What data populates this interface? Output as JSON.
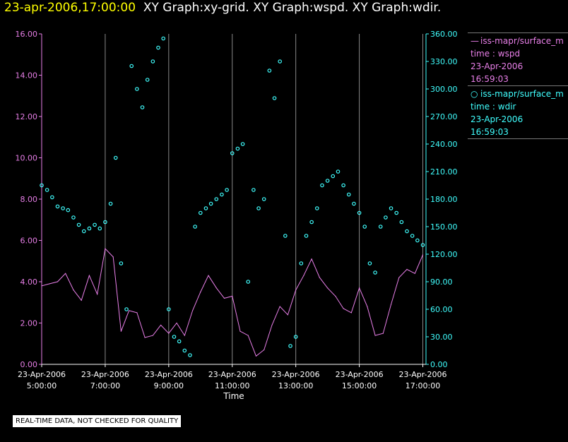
{
  "header": {
    "datetime": "23-apr-2006,17:00:00",
    "title": "XY Graph:xy-grid.  XY Graph:wspd.  XY Graph:wdir."
  },
  "legend": [
    {
      "name": "iss-mapr/surface_m",
      "symbol": "line",
      "label": "time : wspd",
      "date": "23-Apr-2006",
      "time": "16:59:03"
    },
    {
      "name": "iss-mapr/surface_m",
      "symbol": "circle",
      "label": "time : wdir",
      "date": "23-Apr-2006",
      "time": "16:59:03"
    }
  ],
  "quality_note": "REAL-TIME DATA, NOT CHECKED FOR QUALITY",
  "colors": {
    "wspd": "#e87fe8",
    "wdir": "#40ffff",
    "grid": "#888888",
    "axis": "#ffffff",
    "date": "#ffff00"
  },
  "chart_data": {
    "type": "line",
    "xlabel": "Time",
    "xlim": [
      5.0,
      17.1
    ],
    "x_ticks": [
      {
        "value": 5,
        "date": "23-Apr-2006",
        "time": "5:00:00"
      },
      {
        "value": 7,
        "date": "23-Apr-2006",
        "time": "7:00:00"
      },
      {
        "value": 9,
        "date": "23-Apr-2006",
        "time": "9:00:00"
      },
      {
        "value": 11,
        "date": "23-Apr-2006",
        "time": "11:00:00"
      },
      {
        "value": 13,
        "date": "23-Apr-2006",
        "time": "13:00:00"
      },
      {
        "value": 15,
        "date": "23-Apr-2006",
        "time": "15:00:00"
      },
      {
        "value": 17,
        "date": "23-Apr-2006",
        "time": "17:00:00"
      }
    ],
    "y_left": {
      "name": "wspd",
      "ylim": [
        0,
        16
      ],
      "ticks": [
        "0.00",
        "2.00",
        "4.00",
        "6.00",
        "8.00",
        "10.00",
        "12.00",
        "14.00",
        "16.00"
      ]
    },
    "y_right": {
      "name": "wdir",
      "ylim": [
        0,
        360
      ],
      "ticks": [
        "0.00",
        "30.00",
        "60.00",
        "90.00",
        "120.00",
        "150.00",
        "180.00",
        "210.00",
        "240.00",
        "270.00",
        "300.00",
        "330.00",
        "360.00"
      ]
    },
    "series": [
      {
        "name": "wspd",
        "style": "line",
        "axis": "left",
        "x": [
          5.0,
          5.25,
          5.5,
          5.75,
          6.0,
          6.25,
          6.5,
          6.75,
          7.0,
          7.25,
          7.5,
          7.75,
          8.0,
          8.25,
          8.5,
          8.75,
          9.0,
          9.25,
          9.5,
          9.75,
          10.0,
          10.25,
          10.5,
          10.75,
          11.0,
          11.25,
          11.5,
          11.75,
          12.0,
          12.25,
          12.5,
          12.75,
          13.0,
          13.25,
          13.5,
          13.75,
          14.0,
          14.25,
          14.5,
          14.75,
          15.0,
          15.25,
          15.5,
          15.75,
          16.0,
          16.25,
          16.5,
          16.75,
          17.0
        ],
        "values": [
          3.8,
          3.9,
          4.0,
          4.4,
          3.6,
          3.1,
          4.3,
          3.4,
          5.6,
          5.2,
          1.6,
          2.6,
          2.5,
          1.3,
          1.4,
          1.9,
          1.5,
          2.0,
          1.4,
          2.6,
          3.5,
          4.3,
          3.7,
          3.2,
          3.3,
          1.6,
          1.4,
          0.4,
          0.7,
          1.9,
          2.8,
          2.4,
          3.6,
          4.3,
          5.1,
          4.2,
          3.7,
          3.3,
          2.7,
          2.5,
          3.7,
          2.8,
          1.4,
          1.5,
          2.9,
          4.2,
          4.6,
          4.4,
          5.3
        ]
      },
      {
        "name": "wdir",
        "style": "markers",
        "axis": "right",
        "x": [
          5.0,
          5.17,
          5.33,
          5.5,
          5.67,
          5.83,
          6.0,
          6.17,
          6.33,
          6.5,
          6.67,
          6.83,
          7.0,
          7.17,
          7.33,
          7.5,
          7.67,
          7.83,
          8.0,
          8.17,
          8.33,
          8.5,
          8.67,
          8.83,
          9.0,
          9.17,
          9.33,
          9.5,
          9.67,
          9.83,
          10.0,
          10.17,
          10.33,
          10.5,
          10.67,
          10.83,
          11.0,
          11.17,
          11.33,
          11.5,
          11.67,
          11.83,
          12.0,
          12.17,
          12.33,
          12.5,
          12.67,
          12.83,
          13.0,
          13.17,
          13.33,
          13.5,
          13.67,
          13.83,
          14.0,
          14.17,
          14.33,
          14.5,
          14.67,
          14.83,
          15.0,
          15.17,
          15.33,
          15.5,
          15.67,
          15.83,
          16.0,
          16.17,
          16.33,
          16.5,
          16.67,
          16.83,
          17.0
        ],
        "values": [
          195,
          190,
          182,
          172,
          170,
          168,
          160,
          152,
          145,
          148,
          152,
          148,
          155,
          175,
          225,
          110,
          60,
          325,
          300,
          280,
          310,
          330,
          345,
          355,
          60,
          30,
          25,
          15,
          10,
          150,
          165,
          170,
          175,
          180,
          185,
          190,
          230,
          235,
          240,
          90,
          190,
          170,
          180,
          320,
          290,
          330,
          140,
          20,
          30,
          110,
          140,
          155,
          170,
          195,
          200,
          205,
          210,
          195,
          185,
          175,
          165,
          150,
          110,
          100,
          150,
          160,
          170,
          165,
          155,
          145,
          140,
          135,
          130
        ]
      }
    ]
  }
}
